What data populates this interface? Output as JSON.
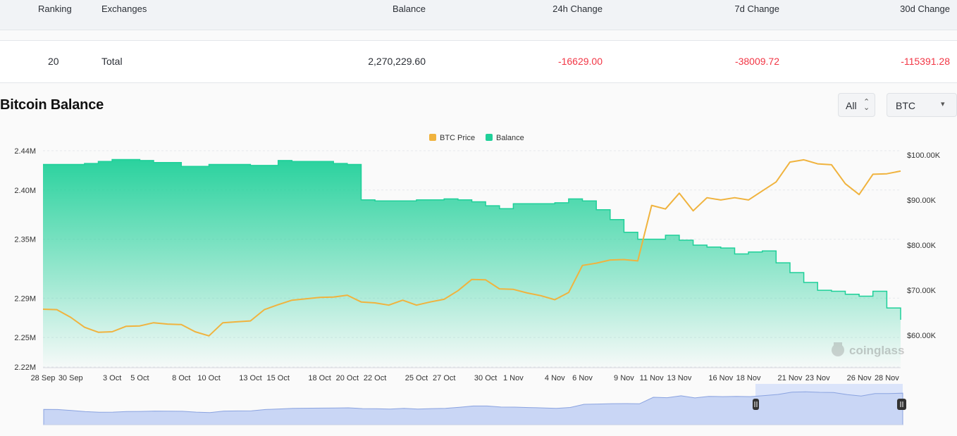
{
  "table": {
    "headers": {
      "ranking": "Ranking",
      "exchanges": "Exchanges",
      "balance": "Balance",
      "change_24h": "24h Change",
      "change_7d": "7d Change",
      "change_30d": "30d Change"
    },
    "total_row": {
      "ranking": "20",
      "exchange": "Total",
      "balance": "2,270,229.60",
      "change_24h": "-16629.00",
      "change_7d": "-38009.72",
      "change_30d": "-115391.28"
    }
  },
  "chart_section": {
    "title": "Bitcoin Balance",
    "range_select": {
      "value": "All"
    },
    "unit_select": {
      "value": "BTC"
    },
    "watermark": "coinglass"
  },
  "chart_data": {
    "type": "area",
    "legend": {
      "placement": "top-center",
      "items": [
        {
          "name": "BTC Price",
          "color": "#f0b33e"
        },
        {
          "name": "Balance",
          "color": "#1fd099"
        }
      ]
    },
    "x_tick_labels": [
      "28 Sep",
      "30 Sep",
      "3 Oct",
      "5 Oct",
      "8 Oct",
      "10 Oct",
      "13 Oct",
      "15 Oct",
      "18 Oct",
      "20 Oct",
      "22 Oct",
      "25 Oct",
      "27 Oct",
      "30 Oct",
      "1 Nov",
      "4 Nov",
      "6 Nov",
      "9 Nov",
      "11 Nov",
      "13 Nov",
      "16 Nov",
      "18 Nov",
      "21 Nov",
      "23 Nov",
      "26 Nov",
      "28 Nov"
    ],
    "y_left": {
      "ticks": [
        "2.44M",
        "2.40M",
        "2.35M",
        "2.29M",
        "2.25M",
        "2.22M"
      ],
      "range": [
        2220000,
        2445000
      ]
    },
    "y_right": {
      "ticks": [
        "$100.00K",
        "$90.00K",
        "$80.00K",
        "$70.00K",
        "$60.00K"
      ],
      "range": [
        53000,
        102000
      ]
    },
    "grid": true,
    "series": [
      {
        "name": "Balance",
        "axis": "left",
        "color": "#1fd099",
        "x": [
          "28 Sep",
          "30 Sep",
          "1 Oct",
          "2 Oct",
          "3 Oct",
          "4 Oct",
          "5 Oct",
          "6 Oct",
          "7 Oct",
          "8 Oct",
          "10 Oct",
          "12 Oct",
          "13 Oct",
          "14 Oct",
          "15 Oct",
          "16 Oct",
          "18 Oct",
          "19 Oct",
          "20 Oct",
          "21 Oct",
          "22 Oct",
          "25 Oct",
          "27 Oct",
          "28 Oct",
          "29 Oct",
          "30 Oct",
          "31 Oct",
          "1 Nov",
          "3 Nov",
          "4 Nov",
          "5 Nov",
          "6 Nov",
          "7 Nov",
          "8 Nov",
          "9 Nov",
          "10 Nov",
          "11 Nov",
          "12 Nov",
          "13 Nov",
          "14 Nov",
          "15 Nov",
          "16 Nov",
          "17 Nov",
          "18 Nov",
          "19 Nov",
          "20 Nov",
          "21 Nov",
          "22 Nov",
          "23 Nov",
          "24 Nov",
          "25 Nov",
          "26 Nov",
          "27 Nov",
          "28 Nov",
          "29 Nov"
        ],
        "values": [
          2426000,
          2426000,
          2427000,
          2429000,
          2431000,
          2431000,
          2430000,
          2428000,
          2428000,
          2424000,
          2426000,
          2426000,
          2425000,
          2425000,
          2430000,
          2429000,
          2429000,
          2427000,
          2426000,
          2390000,
          2389000,
          2390000,
          2391000,
          2390000,
          2388000,
          2384000,
          2381000,
          2386000,
          2386000,
          2387000,
          2391000,
          2389000,
          2380000,
          2370000,
          2357000,
          2350000,
          2350000,
          2354000,
          2349000,
          2344000,
          2342000,
          2341000,
          2335000,
          2337000,
          2338000,
          2326000,
          2316000,
          2306000,
          2298000,
          2297000,
          2294000,
          2292000,
          2297000,
          2280000,
          2268000
        ]
      },
      {
        "name": "BTC Price",
        "axis": "right",
        "color": "#f0b33e",
        "x": [
          "28 Sep",
          "29 Sep",
          "30 Sep",
          "1 Oct",
          "2 Oct",
          "3 Oct",
          "4 Oct",
          "5 Oct",
          "6 Oct",
          "7 Oct",
          "8 Oct",
          "9 Oct",
          "10 Oct",
          "11 Oct",
          "12 Oct",
          "13 Oct",
          "14 Oct",
          "15 Oct",
          "16 Oct",
          "18 Oct",
          "19 Oct",
          "20 Oct",
          "21 Oct",
          "22 Oct",
          "23 Oct",
          "24 Oct",
          "25 Oct",
          "26 Oct",
          "27 Oct",
          "28 Oct",
          "29 Oct",
          "30 Oct",
          "31 Oct",
          "1 Nov",
          "2 Nov",
          "3 Nov",
          "4 Nov",
          "5 Nov",
          "6 Nov",
          "7 Nov",
          "8 Nov",
          "9 Nov",
          "10 Nov",
          "11 Nov",
          "12 Nov",
          "13 Nov",
          "14 Nov",
          "15 Nov",
          "16 Nov",
          "17 Nov",
          "18 Nov",
          "19 Nov",
          "20 Nov",
          "21 Nov",
          "22 Nov",
          "23 Nov",
          "24 Nov",
          "25 Nov",
          "26 Nov",
          "27 Nov",
          "28 Nov",
          "29 Nov"
        ],
        "values": [
          65800,
          65700,
          64000,
          61800,
          60700,
          60800,
          62000,
          62100,
          62800,
          62500,
          62400,
          60800,
          59900,
          62800,
          63000,
          63200,
          65700,
          66800,
          67800,
          68400,
          68500,
          68900,
          67400,
          67200,
          66700,
          67800,
          66700,
          67400,
          68000,
          69900,
          72400,
          72300,
          70300,
          70200,
          69400,
          68800,
          67900,
          69500,
          75500,
          76000,
          76700,
          76800,
          76500,
          88800,
          88000,
          91500,
          87600,
          90500,
          90000,
          90500,
          90000,
          92000,
          94000,
          98400,
          98900,
          98000,
          97800,
          93600,
          91200,
          95700,
          95800,
          96400
        ]
      }
    ]
  }
}
